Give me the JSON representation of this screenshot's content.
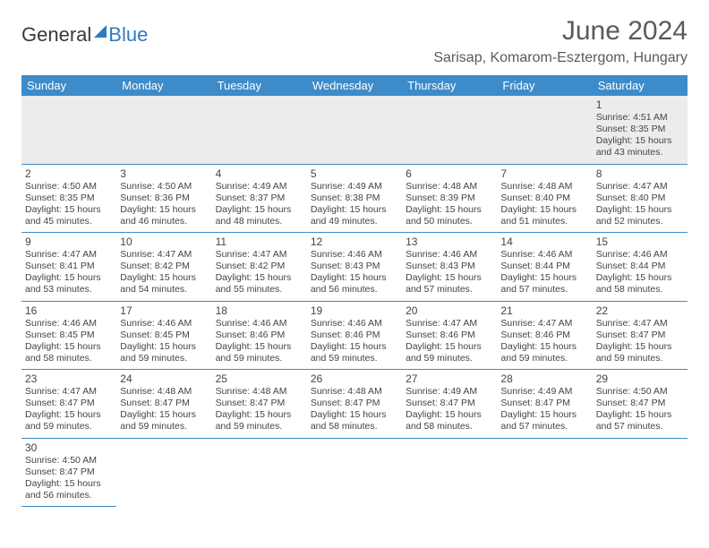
{
  "logo": {
    "part1": "General",
    "part2": "Blue"
  },
  "title": "June 2024",
  "location": "Sarisap, Komarom-Esztergom, Hungary",
  "colors": {
    "header_bg": "#3d8bc9",
    "header_text": "#ffffff",
    "rule": "#3d8bc9",
    "odd_row_bg": "#ececec",
    "text": "#444444",
    "title_text": "#5a5a5a",
    "accent": "#2e7cc0"
  },
  "weekdays": [
    "Sunday",
    "Monday",
    "Tuesday",
    "Wednesday",
    "Thursday",
    "Friday",
    "Saturday"
  ],
  "weeks": [
    [
      null,
      null,
      null,
      null,
      null,
      null,
      {
        "d": "1",
        "sr": "4:51 AM",
        "ss": "8:35 PM",
        "dl": "15 hours and 43 minutes."
      }
    ],
    [
      {
        "d": "2",
        "sr": "4:50 AM",
        "ss": "8:35 PM",
        "dl": "15 hours and 45 minutes."
      },
      {
        "d": "3",
        "sr": "4:50 AM",
        "ss": "8:36 PM",
        "dl": "15 hours and 46 minutes."
      },
      {
        "d": "4",
        "sr": "4:49 AM",
        "ss": "8:37 PM",
        "dl": "15 hours and 48 minutes."
      },
      {
        "d": "5",
        "sr": "4:49 AM",
        "ss": "8:38 PM",
        "dl": "15 hours and 49 minutes."
      },
      {
        "d": "6",
        "sr": "4:48 AM",
        "ss": "8:39 PM",
        "dl": "15 hours and 50 minutes."
      },
      {
        "d": "7",
        "sr": "4:48 AM",
        "ss": "8:40 PM",
        "dl": "15 hours and 51 minutes."
      },
      {
        "d": "8",
        "sr": "4:47 AM",
        "ss": "8:40 PM",
        "dl": "15 hours and 52 minutes."
      }
    ],
    [
      {
        "d": "9",
        "sr": "4:47 AM",
        "ss": "8:41 PM",
        "dl": "15 hours and 53 minutes."
      },
      {
        "d": "10",
        "sr": "4:47 AM",
        "ss": "8:42 PM",
        "dl": "15 hours and 54 minutes."
      },
      {
        "d": "11",
        "sr": "4:47 AM",
        "ss": "8:42 PM",
        "dl": "15 hours and 55 minutes."
      },
      {
        "d": "12",
        "sr": "4:46 AM",
        "ss": "8:43 PM",
        "dl": "15 hours and 56 minutes."
      },
      {
        "d": "13",
        "sr": "4:46 AM",
        "ss": "8:43 PM",
        "dl": "15 hours and 57 minutes."
      },
      {
        "d": "14",
        "sr": "4:46 AM",
        "ss": "8:44 PM",
        "dl": "15 hours and 57 minutes."
      },
      {
        "d": "15",
        "sr": "4:46 AM",
        "ss": "8:44 PM",
        "dl": "15 hours and 58 minutes."
      }
    ],
    [
      {
        "d": "16",
        "sr": "4:46 AM",
        "ss": "8:45 PM",
        "dl": "15 hours and 58 minutes."
      },
      {
        "d": "17",
        "sr": "4:46 AM",
        "ss": "8:45 PM",
        "dl": "15 hours and 59 minutes."
      },
      {
        "d": "18",
        "sr": "4:46 AM",
        "ss": "8:46 PM",
        "dl": "15 hours and 59 minutes."
      },
      {
        "d": "19",
        "sr": "4:46 AM",
        "ss": "8:46 PM",
        "dl": "15 hours and 59 minutes."
      },
      {
        "d": "20",
        "sr": "4:47 AM",
        "ss": "8:46 PM",
        "dl": "15 hours and 59 minutes."
      },
      {
        "d": "21",
        "sr": "4:47 AM",
        "ss": "8:46 PM",
        "dl": "15 hours and 59 minutes."
      },
      {
        "d": "22",
        "sr": "4:47 AM",
        "ss": "8:47 PM",
        "dl": "15 hours and 59 minutes."
      }
    ],
    [
      {
        "d": "23",
        "sr": "4:47 AM",
        "ss": "8:47 PM",
        "dl": "15 hours and 59 minutes."
      },
      {
        "d": "24",
        "sr": "4:48 AM",
        "ss": "8:47 PM",
        "dl": "15 hours and 59 minutes."
      },
      {
        "d": "25",
        "sr": "4:48 AM",
        "ss": "8:47 PM",
        "dl": "15 hours and 59 minutes."
      },
      {
        "d": "26",
        "sr": "4:48 AM",
        "ss": "8:47 PM",
        "dl": "15 hours and 58 minutes."
      },
      {
        "d": "27",
        "sr": "4:49 AM",
        "ss": "8:47 PM",
        "dl": "15 hours and 58 minutes."
      },
      {
        "d": "28",
        "sr": "4:49 AM",
        "ss": "8:47 PM",
        "dl": "15 hours and 57 minutes."
      },
      {
        "d": "29",
        "sr": "4:50 AM",
        "ss": "8:47 PM",
        "dl": "15 hours and 57 minutes."
      }
    ],
    [
      {
        "d": "30",
        "sr": "4:50 AM",
        "ss": "8:47 PM",
        "dl": "15 hours and 56 minutes."
      },
      null,
      null,
      null,
      null,
      null,
      null
    ]
  ],
  "labels": {
    "sunrise": "Sunrise:",
    "sunset": "Sunset:",
    "daylight": "Daylight:"
  }
}
